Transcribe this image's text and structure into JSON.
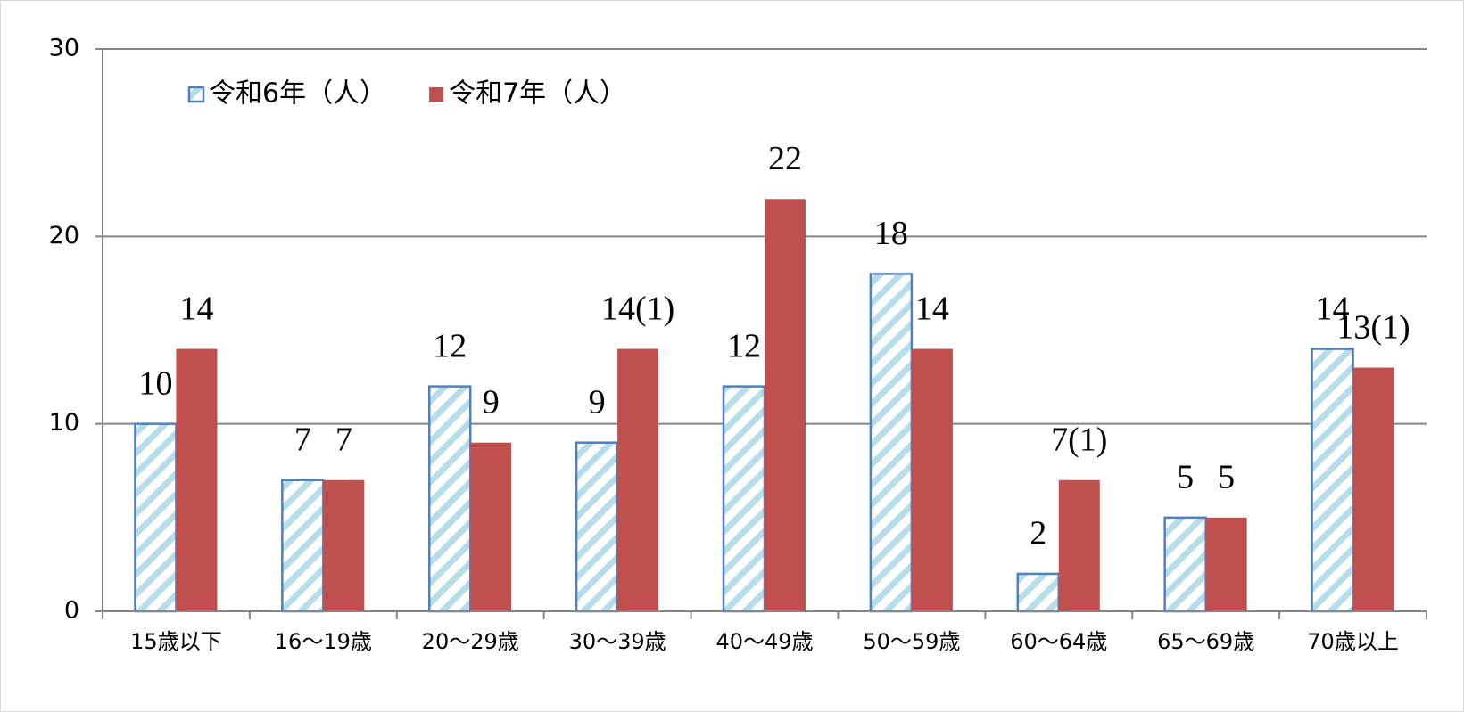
{
  "chart_data": {
    "type": "bar",
    "categories": [
      "15歳以下",
      "16～19歳",
      "20～29歳",
      "30～39歳",
      "40～49歳",
      "50～59歳",
      "60～64歳",
      "65～69歳",
      "70歳以上"
    ],
    "series": [
      {
        "name": "令和6年（人）",
        "color": "#4f81bd",
        "hatch": "#b7dde8",
        "values": [
          10,
          7,
          12,
          9,
          12,
          18,
          2,
          5,
          14
        ]
      },
      {
        "name": "令和7年（人）",
        "color": "#c0504d",
        "values": [
          14,
          7,
          9,
          14,
          22,
          14,
          7,
          5,
          13
        ],
        "value_labels": [
          "14",
          "7",
          "9",
          "14(1)",
          "22",
          "14",
          "7(1)",
          "5",
          "13(1)"
        ]
      }
    ],
    "ylim": [
      0,
      30
    ],
    "yticks": [
      0,
      10,
      20,
      30
    ],
    "grid": true,
    "legend": "top-left"
  }
}
